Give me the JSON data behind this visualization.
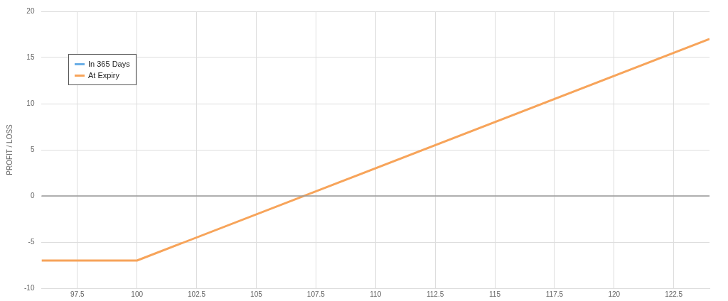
{
  "chart_data": {
    "type": "line",
    "ylabel": "PROFIT / LOSS",
    "xlim": [
      96,
      124
    ],
    "xticks": [
      97.5,
      100,
      102.5,
      105,
      107.5,
      110,
      112.5,
      115,
      117.5,
      120,
      122.5
    ],
    "ylim": [
      -10,
      20
    ],
    "yticks": [
      -10,
      -5,
      0,
      5,
      10,
      15,
      20
    ],
    "grid": true,
    "legend": "top left",
    "marker": "none",
    "line_style": "solid",
    "ref_lines": [
      {
        "axis": "y",
        "value": 0,
        "color": "#999999"
      }
    ],
    "series": [
      {
        "name": "In 365 Days",
        "color": "#6aaee6"
      },
      {
        "name": "At Expiry",
        "color": "#f7a45a",
        "x": [
          96,
          100,
          124
        ],
        "values": [
          -7,
          -7,
          17
        ]
      }
    ]
  }
}
